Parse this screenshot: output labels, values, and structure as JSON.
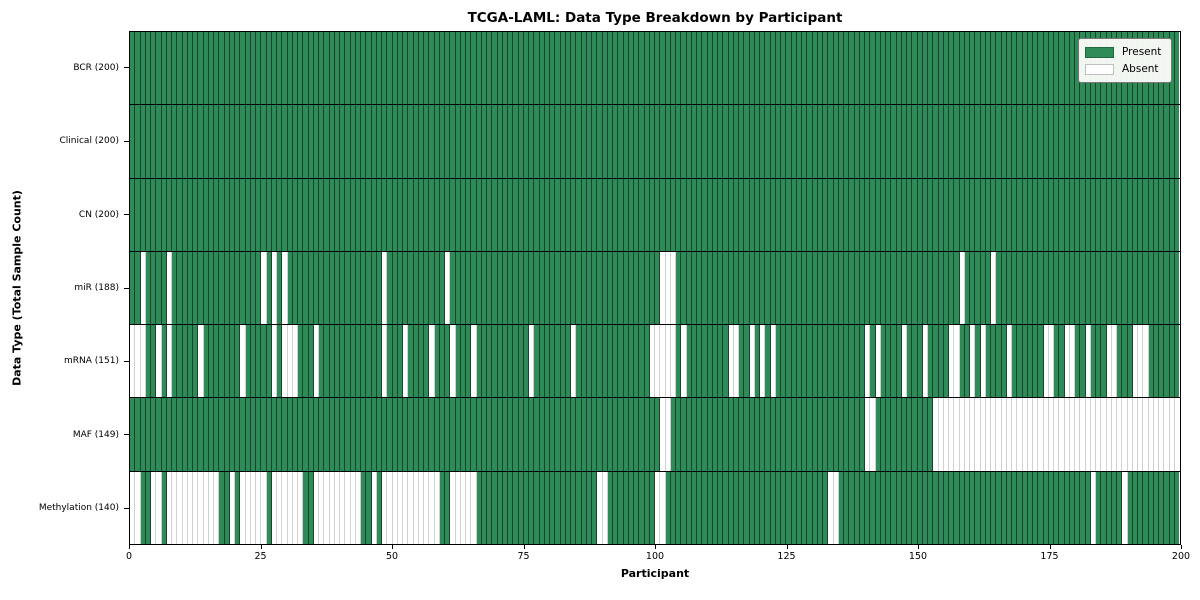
{
  "chart_data": {
    "type": "heatmap",
    "title": "TCGA-LAML: Data Type Breakdown by Participant",
    "xlabel": "Participant",
    "ylabel": "Data Type (Total Sample Count)",
    "n_participants": 200,
    "x_range": [
      0,
      200
    ],
    "xticks": [
      0,
      25,
      50,
      75,
      100,
      125,
      150,
      175,
      200
    ],
    "grid": false,
    "legend_position": "upper right",
    "legend": [
      {
        "label": "Present",
        "color": "#2e8b57"
      },
      {
        "label": "Absent",
        "color": "#ffffff"
      }
    ],
    "rows": [
      {
        "label": "BCR (200)",
        "present_total": 200,
        "absent": []
      },
      {
        "label": "Clinical (200)",
        "present_total": 200,
        "absent": []
      },
      {
        "label": "CN (200)",
        "present_total": 200,
        "absent": []
      },
      {
        "label": "miR (188)",
        "present_total": 188,
        "absent": [
          2,
          7,
          25,
          27,
          29,
          48,
          60,
          101,
          102,
          103,
          158,
          164
        ]
      },
      {
        "label": "mRNA (151)",
        "present_total": 151,
        "absent": [
          0,
          1,
          2,
          5,
          7,
          13,
          21,
          27,
          29,
          30,
          31,
          35,
          48,
          52,
          57,
          61,
          65,
          76,
          84,
          99,
          100,
          101,
          102,
          103,
          105,
          114,
          115,
          118,
          120,
          122,
          140,
          142,
          147,
          151,
          156,
          157,
          160,
          162,
          167,
          174,
          175,
          178,
          179,
          182,
          186,
          187,
          191,
          192,
          193
        ]
      },
      {
        "label": "MAF (149)",
        "present_total": 149,
        "absent": [
          101,
          102,
          140,
          141,
          153,
          154,
          155,
          156,
          157,
          158,
          159,
          160,
          161,
          162,
          163,
          164,
          165,
          166,
          167,
          168,
          169,
          170,
          171,
          172,
          173,
          174,
          175,
          176,
          177,
          178,
          179,
          180,
          181,
          182,
          183,
          184,
          185,
          186,
          187,
          188,
          189,
          190,
          191,
          192,
          193,
          194,
          195,
          196,
          197,
          198,
          199
        ]
      },
      {
        "label": "Methylation (140)",
        "present_total": 140,
        "absent": [
          0,
          1,
          4,
          5,
          7,
          8,
          9,
          10,
          11,
          12,
          13,
          14,
          15,
          16,
          19,
          21,
          22,
          23,
          24,
          25,
          27,
          28,
          29,
          30,
          31,
          32,
          35,
          36,
          37,
          38,
          39,
          40,
          41,
          42,
          43,
          46,
          48,
          49,
          50,
          51,
          52,
          53,
          54,
          55,
          56,
          57,
          58,
          61,
          62,
          63,
          64,
          65,
          89,
          90,
          100,
          101,
          133,
          134,
          183,
          189
        ]
      }
    ]
  }
}
